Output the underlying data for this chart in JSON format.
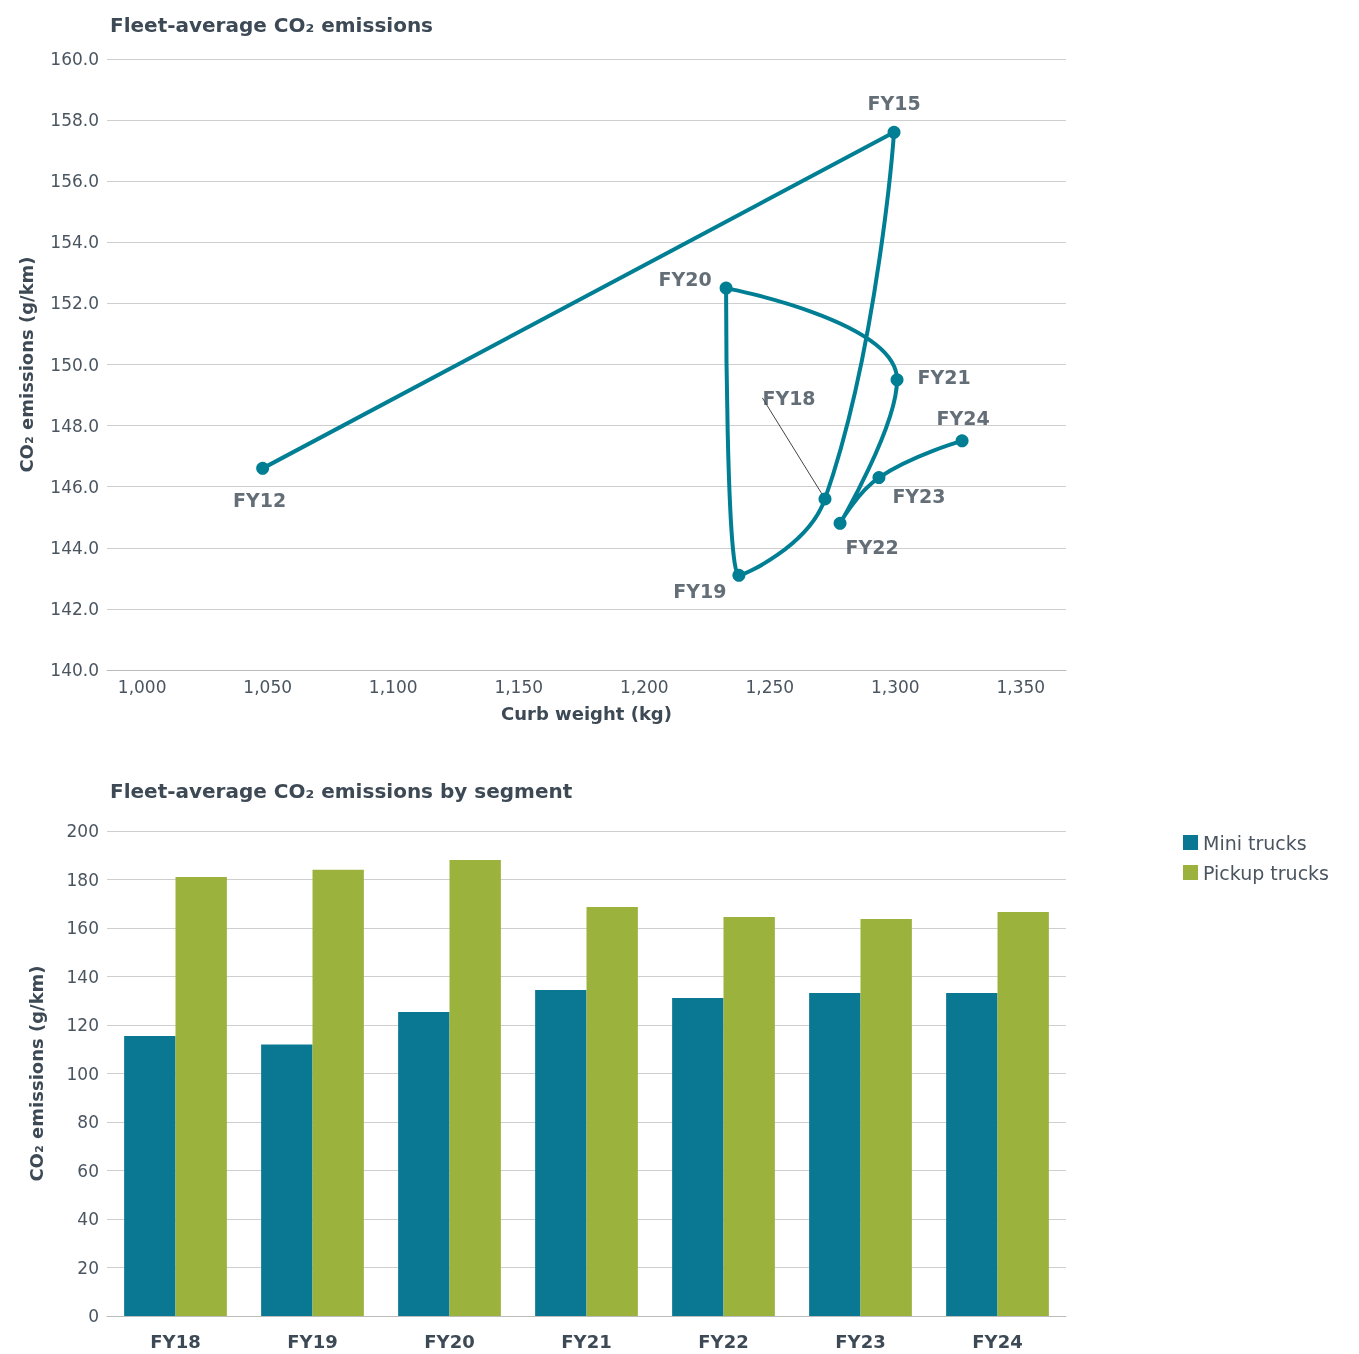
{
  "chart_data": [
    {
      "type": "line",
      "title": "Fleet-average CO₂ emissions",
      "xlabel": "Curb weight (kg)",
      "ylabel": "CO₂ emissions (g/km)",
      "x": [
        1048,
        1299.5,
        1272,
        1237.7,
        1232.6,
        1300.7,
        1278,
        1293.5,
        1326.6
      ],
      "series": [
        {
          "color": "#007f94",
          "values": [
            146.6,
            157.6,
            145.6,
            143.1,
            152.5,
            149.5,
            144.8,
            146.3,
            147.5
          ]
        }
      ],
      "annotations": [
        {
          "text": "FY12",
          "x": 1048,
          "y": 146.6
        },
        {
          "text": "FY15",
          "x": 1299.5,
          "y": 157.6
        },
        {
          "text": "FY18",
          "x": 1272,
          "y": 145.6
        },
        {
          "text": "FY19",
          "x": 1237.7,
          "y": 143.1
        },
        {
          "text": "FY20",
          "x": 1232.6,
          "y": 152.5
        },
        {
          "text": "FY21",
          "x": 1300.7,
          "y": 149.5
        },
        {
          "text": "FY22",
          "x": 1278,
          "y": 144.8
        },
        {
          "text": "FY23",
          "x": 1293.5,
          "y": 146.3
        },
        {
          "text": "FY24",
          "x": 1326.6,
          "y": 147.5
        }
      ],
      "xlim": [
        986,
        1368
      ],
      "xticks": [
        {
          "value": 1000,
          "label": "1,000"
        },
        {
          "value": 1050,
          "label": "1,050"
        },
        {
          "value": 1100,
          "label": "1,100"
        },
        {
          "value": 1150,
          "label": "1,150"
        },
        {
          "value": 1200,
          "label": "1,200"
        },
        {
          "value": 1250,
          "label": "1,250"
        },
        {
          "value": 1300,
          "label": "1,300"
        },
        {
          "value": 1350,
          "label": "1,350"
        }
      ],
      "ylim": [
        140,
        160
      ],
      "yticks": [
        {
          "value": 140,
          "label": "140.0"
        },
        {
          "value": 142,
          "label": "142.0"
        },
        {
          "value": 144,
          "label": "144.0"
        },
        {
          "value": 146,
          "label": "146.0"
        },
        {
          "value": 148,
          "label": "148.0"
        },
        {
          "value": 150,
          "label": "150.0"
        },
        {
          "value": 152,
          "label": "152.0"
        },
        {
          "value": 154,
          "label": "154.0"
        },
        {
          "value": 156,
          "label": "156.0"
        },
        {
          "value": 158,
          "label": "158.0"
        },
        {
          "value": 160,
          "label": "160.0"
        }
      ],
      "grid": "y",
      "marker": "circle",
      "line_style": "solid"
    },
    {
      "type": "bar",
      "title": "Fleet-average CO₂ emissions by segment",
      "ylabel": "CO₂ emissions (g/km)",
      "categories": [
        "FY18",
        "FY19",
        "FY20",
        "FY21",
        "FY22",
        "FY23",
        "FY24"
      ],
      "series": [
        {
          "name": "Mini trucks",
          "color": "#0b7893",
          "values": [
            115.5,
            112,
            125.4,
            134.4,
            131.1,
            133.2,
            133.2
          ]
        },
        {
          "name": "Pickup trucks",
          "color": "#9bb33c",
          "values": [
            181,
            184,
            188,
            168.7,
            164.5,
            163.7,
            166.6
          ]
        }
      ],
      "ylim": [
        0,
        200
      ],
      "yticks": [
        0,
        20,
        40,
        60,
        80,
        100,
        120,
        140,
        160,
        180,
        200
      ],
      "grid": "y",
      "legend": "right"
    }
  ]
}
